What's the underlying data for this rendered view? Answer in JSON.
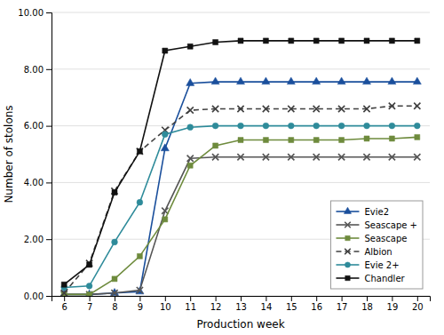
{
  "chart_data": {
    "type": "line",
    "x": [
      6,
      7,
      8,
      9,
      10,
      11,
      12,
      13,
      14,
      15,
      16,
      17,
      18,
      19,
      20
    ],
    "series": [
      {
        "name": "Evie2",
        "color": "#1a4f9c",
        "marker": "triangle",
        "line_style": "solid",
        "values": [
          0.05,
          0.05,
          0.1,
          0.15,
          5.2,
          7.5,
          7.55,
          7.55,
          7.55,
          7.55,
          7.55,
          7.55,
          7.55,
          7.55,
          7.55
        ]
      },
      {
        "name": "Seascape +",
        "color": "#555555",
        "marker": "x",
        "line_style": "solid",
        "values": [
          0.05,
          0.05,
          0.1,
          0.2,
          3.0,
          4.85,
          4.9,
          4.9,
          4.9,
          4.9,
          4.9,
          4.9,
          4.9,
          4.9,
          4.9
        ]
      },
      {
        "name": "Seascape",
        "color": "#6e8b3d",
        "marker": "square",
        "line_style": "solid",
        "values": [
          0.05,
          0.05,
          0.6,
          1.4,
          2.7,
          4.6,
          5.3,
          5.5,
          5.5,
          5.5,
          5.5,
          5.5,
          5.55,
          5.55,
          5.6
        ]
      },
      {
        "name": "Albion",
        "color": "#404040",
        "marker": "x",
        "line_style": "dashed",
        "values": [
          0.1,
          1.15,
          3.7,
          5.1,
          5.85,
          6.55,
          6.6,
          6.6,
          6.6,
          6.6,
          6.6,
          6.6,
          6.6,
          6.7,
          6.7
        ]
      },
      {
        "name": "Evie 2+",
        "color": "#2e8b9a",
        "marker": "circle",
        "line_style": "solid",
        "values": [
          0.3,
          0.35,
          1.9,
          3.3,
          5.7,
          5.95,
          6.0,
          6.0,
          6.0,
          6.0,
          6.0,
          6.0,
          6.0,
          6.0,
          6.0
        ]
      },
      {
        "name": "Chandler",
        "color": "#111111",
        "marker": "square",
        "line_style": "solid",
        "values": [
          0.4,
          1.1,
          3.65,
          5.1,
          8.65,
          8.8,
          8.95,
          9.0,
          9.0,
          9.0,
          9.0,
          9.0,
          9.0,
          9.0,
          9.0
        ]
      }
    ],
    "xlabel": "Production week",
    "ylabel": "Number of stolons",
    "xlim": [
      5.5,
      20.5
    ],
    "xticks": [
      6,
      7,
      8,
      9,
      10,
      11,
      12,
      13,
      14,
      15,
      16,
      17,
      18,
      19,
      20
    ],
    "ylim": [
      0.0,
      10.0
    ],
    "yticks": [
      {
        "value": 0.0,
        "label": "0.00"
      },
      {
        "value": 2.0,
        "label": "2.00"
      },
      {
        "value": 4.0,
        "label": "4.00"
      },
      {
        "value": 6.0,
        "label": "6.00"
      },
      {
        "value": 8.0,
        "label": "8.00"
      },
      {
        "value": 10.0,
        "label": "10.00"
      }
    ],
    "grid": "y",
    "legend": "lower right"
  }
}
